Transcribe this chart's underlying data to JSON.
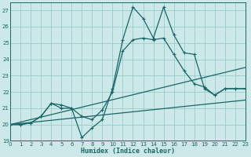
{
  "xlabel": "Humidex (Indice chaleur)",
  "bg_color": "#cce8e8",
  "grid_color": "#99cccc",
  "line_color": "#1a6666",
  "xlim": [
    0,
    23
  ],
  "ylim": [
    19,
    27.5
  ],
  "yticks": [
    19,
    20,
    21,
    22,
    23,
    24,
    25,
    26,
    27
  ],
  "xticks": [
    0,
    1,
    2,
    3,
    4,
    5,
    6,
    7,
    8,
    9,
    10,
    11,
    12,
    13,
    14,
    15,
    16,
    17,
    18,
    19,
    20,
    21,
    22,
    23
  ],
  "s1x": [
    0,
    1,
    2,
    3,
    4,
    5,
    6,
    7,
    8,
    9,
    10,
    11,
    12,
    13,
    14,
    15,
    16,
    17,
    18,
    19,
    20,
    21,
    22,
    23
  ],
  "s1y": [
    20.0,
    20.0,
    20.1,
    20.5,
    21.3,
    21.2,
    21.0,
    19.2,
    19.8,
    20.3,
    22.2,
    25.2,
    27.2,
    26.5,
    25.3,
    27.2,
    25.5,
    24.4,
    24.3,
    22.2,
    21.8,
    22.2,
    22.2,
    22.2
  ],
  "s2x": [
    0,
    1,
    2,
    3,
    4,
    5,
    6,
    7,
    8,
    9,
    10,
    11,
    12,
    13,
    14,
    15,
    16,
    17,
    18,
    19,
    20,
    21,
    22,
    23
  ],
  "s2y": [
    20.0,
    20.0,
    20.1,
    20.5,
    21.3,
    21.0,
    21.0,
    20.5,
    20.3,
    20.9,
    22.0,
    24.5,
    25.2,
    25.3,
    25.2,
    25.3,
    24.3,
    23.3,
    22.5,
    22.3,
    21.8,
    22.2,
    22.2,
    22.2
  ],
  "t1x": [
    0,
    23
  ],
  "t1y": [
    20.0,
    23.5
  ],
  "t2x": [
    0,
    23
  ],
  "t2y": [
    20.0,
    21.5
  ]
}
